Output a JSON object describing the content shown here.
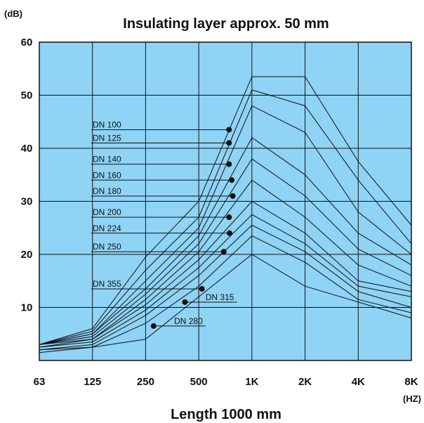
{
  "chart_data": {
    "type": "line",
    "title": "Insulating layer approx. 50 mm",
    "xlabel": "Length 1000 mm",
    "ylabel": "(dB)",
    "x_unit": "(HZ)",
    "categories": [
      "63",
      "125",
      "250",
      "500",
      "1K",
      "2K",
      "4K",
      "8K"
    ],
    "yticks": [
      10,
      20,
      30,
      40,
      50,
      60
    ],
    "ylim": [
      0,
      60
    ],
    "grid": true,
    "background": "#8fd3f5",
    "line_color": "#111111",
    "series": [
      {
        "name": "DN 100",
        "values": [
          3,
          6,
          19.5,
          30,
          53.5,
          53.5,
          37.5,
          25.5
        ]
      },
      {
        "name": "DN 125",
        "values": [
          3,
          5.5,
          17,
          27,
          51,
          48,
          34,
          22
        ]
      },
      {
        "name": "DN 140",
        "values": [
          3,
          5,
          15,
          25,
          48,
          43,
          28,
          20
        ]
      },
      {
        "name": "DN 160",
        "values": [
          3,
          5,
          13.5,
          23.5,
          42,
          35,
          24,
          18
        ]
      },
      {
        "name": "DN 180",
        "values": [
          3,
          4.5,
          12.5,
          22,
          38,
          31,
          21,
          16
        ]
      },
      {
        "name": "DN 200",
        "values": [
          3,
          4,
          11.5,
          20.5,
          34,
          27,
          18,
          14
        ]
      },
      {
        "name": "DN 224",
        "values": [
          2.5,
          4,
          10.5,
          19,
          30,
          24,
          15,
          13
        ]
      },
      {
        "name": "DN 250",
        "values": [
          2.5,
          3.5,
          9.5,
          17.5,
          27.5,
          22,
          14,
          12
        ]
      },
      {
        "name": "DN 280",
        "values": [
          2,
          3,
          8.5,
          16,
          25.5,
          20.5,
          13,
          10
        ]
      },
      {
        "name": "DN 315",
        "values": [
          2,
          2.5,
          7,
          14,
          23.5,
          18.5,
          11.5,
          9
        ]
      },
      {
        "name": "DN 355",
        "values": [
          1.5,
          2.5,
          4,
          12,
          20,
          14,
          11,
          8
        ]
      }
    ],
    "annotations": [
      {
        "label": "DN 100",
        "text_y": 43.5,
        "dot": [
          3.57,
          43.5
        ]
      },
      {
        "label": "DN 125",
        "text_y": 41,
        "dot": [
          3.57,
          41
        ]
      },
      {
        "label": "DN 140",
        "text_y": 37,
        "dot": [
          3.57,
          37
        ]
      },
      {
        "label": "DN 160",
        "text_y": 34,
        "dot": [
          3.62,
          34
        ]
      },
      {
        "label": "DN 180",
        "text_y": 31,
        "dot": [
          3.64,
          31
        ]
      },
      {
        "label": "DN 200",
        "text_y": 27,
        "dot": [
          3.57,
          27
        ]
      },
      {
        "label": "DN 224",
        "text_y": 24,
        "dot": [
          3.58,
          24
        ]
      },
      {
        "label": "DN 250",
        "text_y": 20.5,
        "dot": [
          3.47,
          20.5
        ]
      },
      {
        "label": "DN 355",
        "text_y": 13.5,
        "dot": [
          3.06,
          13.5
        ]
      },
      {
        "label": "DN 315",
        "text_y": 11,
        "dot": [
          2.74,
          11
        ]
      },
      {
        "label": "DN 280",
        "text_y": 6.5,
        "dot": [
          2.15,
          6.5
        ]
      }
    ]
  }
}
